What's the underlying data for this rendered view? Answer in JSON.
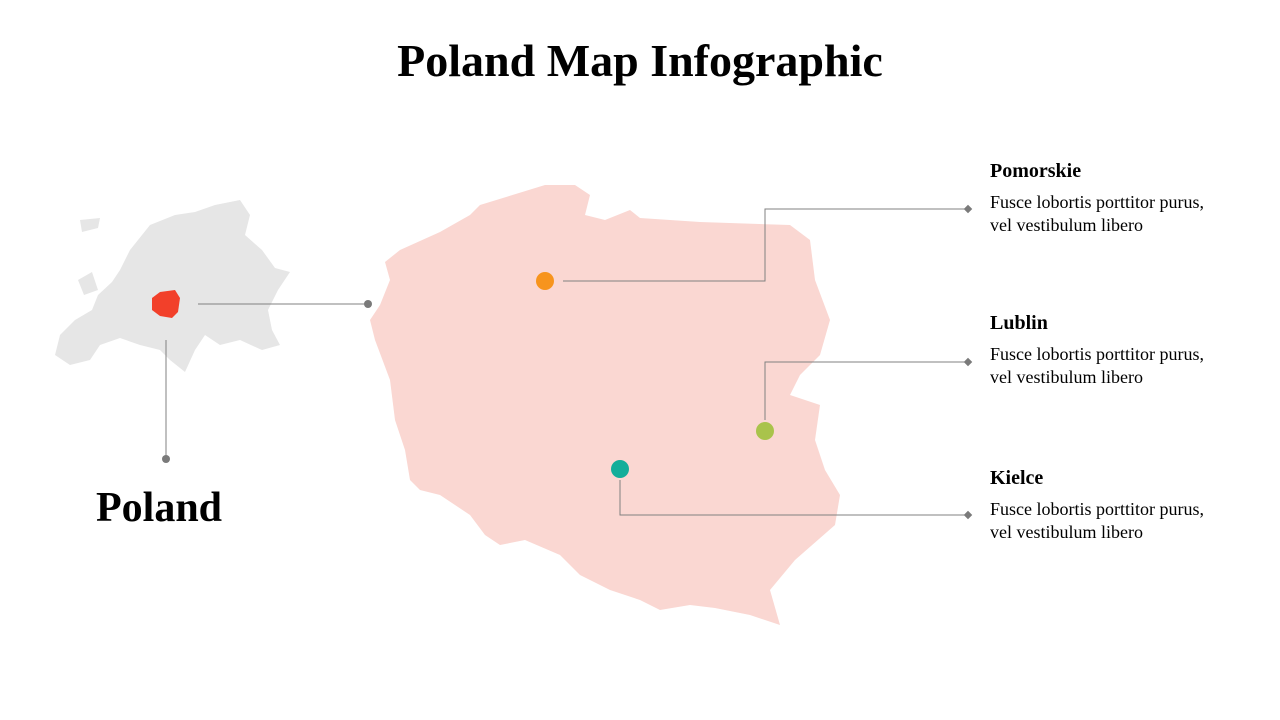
{
  "title": "Poland Map Infographic",
  "country_label": "Poland",
  "regions": [
    {
      "name": "Pomorskie",
      "text": "Fusce lobortis porttitor purus, vel vestibulum libero"
    },
    {
      "name": "Lublin",
      "text": "Fusce lobortis porttitor purus, vel vestibulum libero"
    },
    {
      "name": "Kielce",
      "text": "Fusce lobortis porttitor purus, vel vestibulum libero"
    }
  ]
}
